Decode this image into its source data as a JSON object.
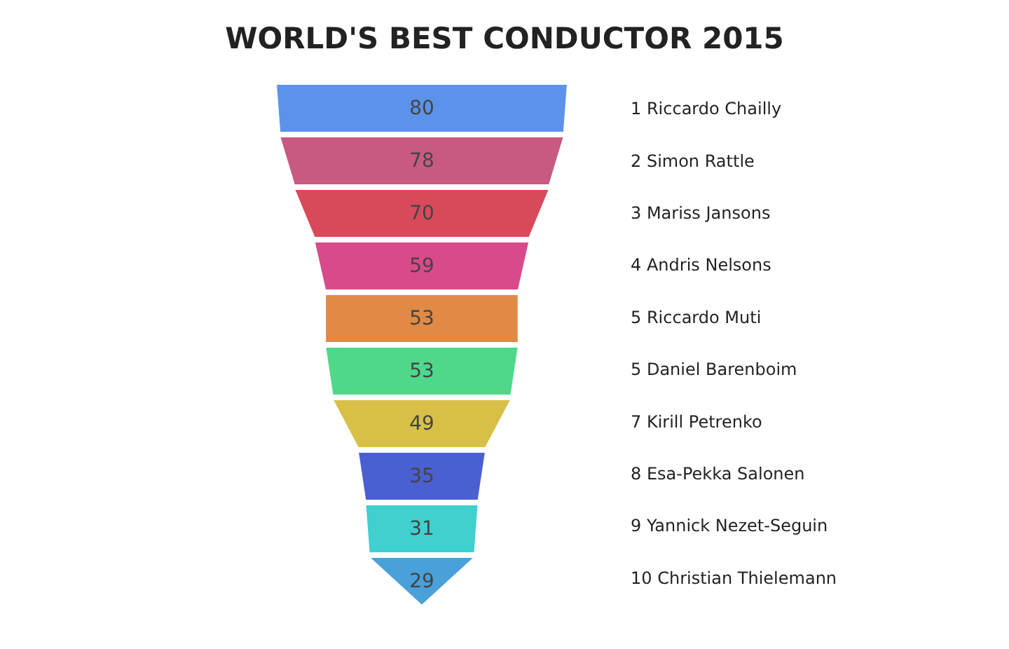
{
  "chart_data": {
    "type": "other",
    "title": "WORLD'S BEST CONDUCTOR 2015",
    "categories": [
      "1 Riccardo Chailly",
      "2 Simon Rattle",
      "3 Mariss Jansons",
      "4 Andris Nelsons",
      "5 Riccardo Muti",
      "5 Daniel Barenboim",
      "7 Kirill Petrenko",
      "8 Esa-Pekka Salonen",
      "9 Yannick Nezet-Seguin",
      "10 Christian Thielemann"
    ],
    "values": [
      80,
      78,
      70,
      59,
      53,
      53,
      49,
      35,
      31,
      29
    ],
    "colors": [
      "#5b93ea",
      "#c85a82",
      "#d84a5a",
      "#d94a8a",
      "#e08a45",
      "#4fd88a",
      "#d8c048",
      "#4a60d0",
      "#40d0d0",
      "#4aa0d8"
    ],
    "data_labels": true
  }
}
